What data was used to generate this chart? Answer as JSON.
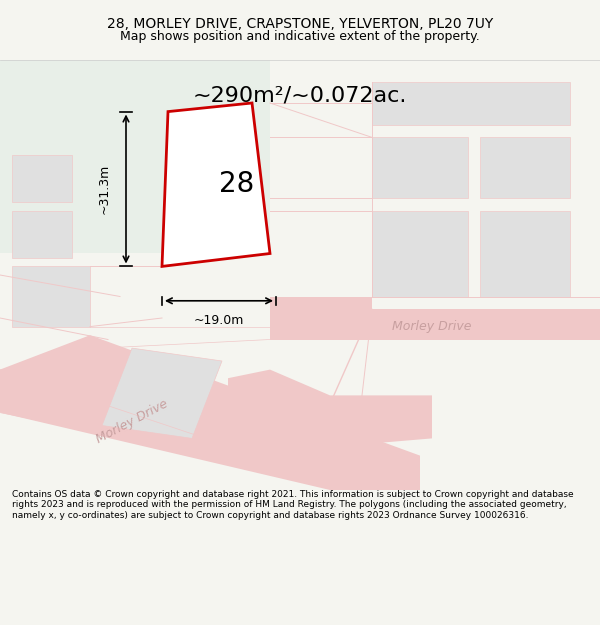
{
  "title_line1": "28, MORLEY DRIVE, CRAPSTONE, YELVERTON, PL20 7UY",
  "title_line2": "Map shows position and indicative extent of the property.",
  "area_label": "~290m²/~0.072ac.",
  "plot_number": "28",
  "dim_width": "~19.0m",
  "dim_height": "~31.3m",
  "morley_drive_label1": "Morley Drive",
  "morley_drive_label2": "Morley Drive",
  "footer": "Contains OS data © Crown copyright and database right 2021. This information is subject to Crown copyright and database rights 2023 and is reproduced with the permission of HM Land Registry. The polygons (including the associated geometry, namely x, y co-ordinates) are subject to Crown copyright and database rights 2023 Ordnance Survey 100026316.",
  "bg_color": "#f5f5f0",
  "map_bg": "#ffffff",
  "plot_fill": "#ffffff",
  "plot_edge": "#cc0000",
  "road_color": "#f0c8c8",
  "block_color": "#e0e0e0",
  "green_area": "#e8efe8",
  "fig_width": 6.0,
  "fig_height": 6.25
}
